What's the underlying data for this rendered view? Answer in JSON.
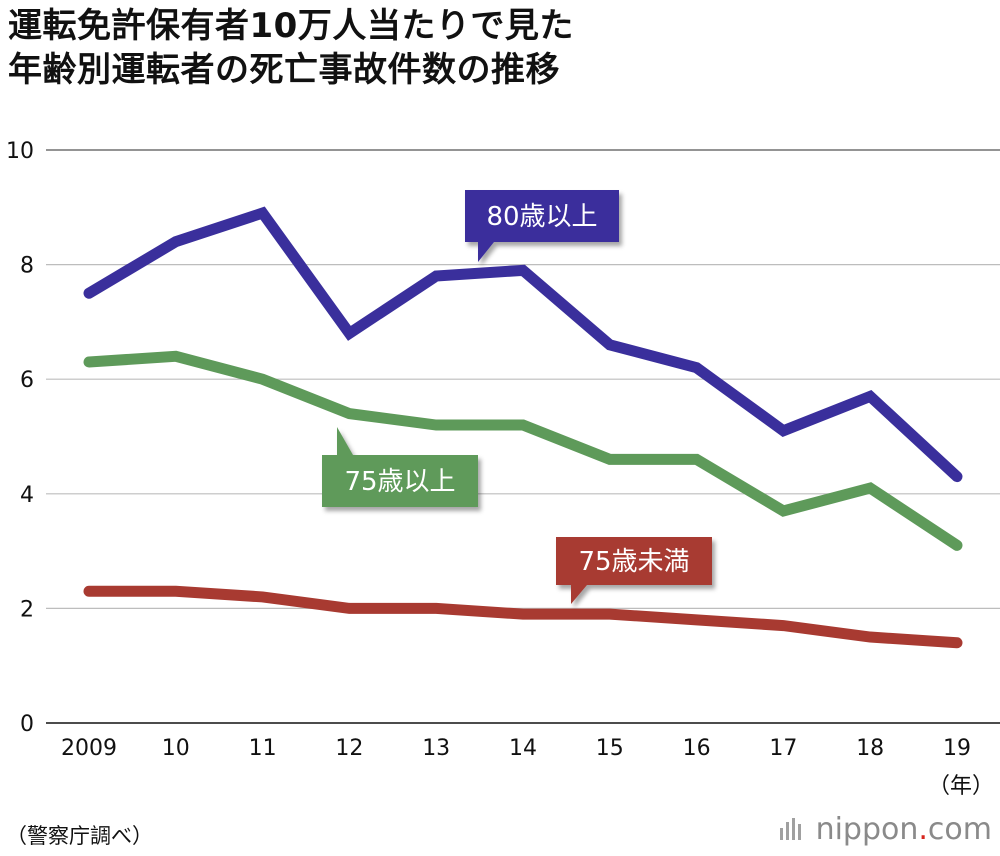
{
  "title": {
    "line1": "運転免許保有者10万人当たりで見た",
    "line2": "年齢別運転者の死亡事故件数の推移"
  },
  "source": "（警察庁調べ）",
  "brand": {
    "name": "nippon",
    "dot": ".",
    "tld": "com"
  },
  "chart_data": {
    "type": "line",
    "title": "運転免許保有者10万人当たりで見た年齢別運転者の死亡事故件数の推移",
    "categories": [
      "2009",
      "10",
      "11",
      "12",
      "13",
      "14",
      "15",
      "16",
      "17",
      "18",
      "19"
    ],
    "x_unit": "（年）",
    "ylim": [
      0,
      10
    ],
    "yticks": [
      0,
      2,
      4,
      6,
      8,
      10
    ],
    "grid": true,
    "series": [
      {
        "name": "80歳以上",
        "color": "#3a2f9c",
        "values": [
          7.5,
          8.4,
          8.9,
          6.8,
          7.8,
          7.9,
          6.6,
          6.2,
          5.1,
          5.7,
          4.3
        ]
      },
      {
        "name": "75歳以上",
        "color": "#5e9a5a",
        "values": [
          6.3,
          6.4,
          6.0,
          5.4,
          5.2,
          5.2,
          4.6,
          4.6,
          3.7,
          4.1,
          3.1
        ]
      },
      {
        "name": "75歳未満",
        "color": "#a83a31",
        "values": [
          2.3,
          2.3,
          2.2,
          2.0,
          2.0,
          1.9,
          1.9,
          1.8,
          1.7,
          1.5,
          1.4
        ]
      }
    ]
  }
}
